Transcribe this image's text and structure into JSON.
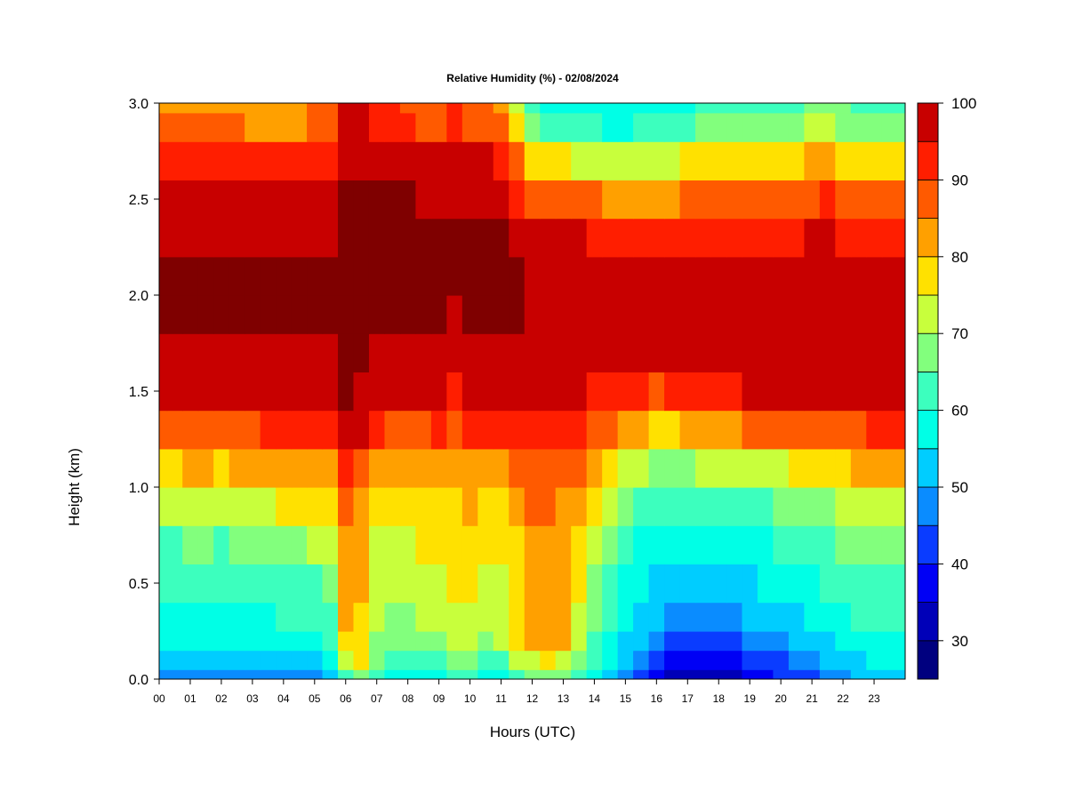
{
  "chart_data": {
    "type": "heatmap",
    "title": "Relative Humidity (%) - 02/08/2024",
    "xlabel": "Hours (UTC)",
    "ylabel": "Height (km)",
    "x_ticks": [
      "00",
      "01",
      "02",
      "03",
      "04",
      "05",
      "06",
      "07",
      "08",
      "09",
      "10",
      "11",
      "12",
      "13",
      "14",
      "15",
      "16",
      "17",
      "18",
      "19",
      "20",
      "21",
      "22",
      "23"
    ],
    "y_ticks": [
      "0.0",
      "0.5",
      "1.0",
      "1.5",
      "2.0",
      "2.5",
      "3.0"
    ],
    "xlim": [
      0,
      24
    ],
    "ylim": [
      0,
      3.0
    ],
    "x": [
      0,
      0.5,
      1,
      1.5,
      2,
      2.5,
      3,
      3.5,
      4,
      4.5,
      5,
      5.5,
      6,
      6.5,
      7,
      7.5,
      8,
      8.5,
      9,
      9.5,
      10,
      10.5,
      11,
      11.5,
      12,
      12.5,
      13,
      13.5,
      14,
      14.5,
      15,
      15.5,
      16,
      16.5,
      17,
      17.5,
      18,
      18.5,
      19,
      19.5,
      20,
      20.5,
      21,
      21.5,
      22,
      22.5,
      23,
      23.5
    ],
    "y": [
      0.0,
      0.1,
      0.2,
      0.3,
      0.5,
      0.7,
      0.9,
      1.1,
      1.3,
      1.5,
      1.7,
      1.9,
      2.1,
      2.3,
      2.5,
      2.7,
      2.9,
      3.0
    ],
    "z": [
      [
        45,
        46,
        47,
        46,
        46,
        45,
        46,
        46,
        46,
        47,
        47,
        50,
        62,
        68,
        60,
        58,
        57,
        58,
        58,
        62,
        60,
        58,
        58,
        63,
        66,
        68,
        66,
        60,
        55,
        50,
        46,
        42,
        38,
        34,
        32,
        33,
        34,
        34,
        36,
        38,
        40,
        42,
        44,
        46,
        48,
        50,
        52,
        52
      ],
      [
        52,
        52,
        53,
        52,
        52,
        52,
        52,
        53,
        53,
        54,
        54,
        57,
        70,
        75,
        66,
        64,
        63,
        64,
        64,
        68,
        66,
        64,
        64,
        70,
        74,
        76,
        74,
        66,
        60,
        55,
        50,
        46,
        42,
        38,
        36,
        37,
        38,
        38,
        40,
        42,
        44,
        46,
        48,
        50,
        52,
        54,
        56,
        56
      ],
      [
        55,
        55,
        56,
        55,
        55,
        55,
        56,
        56,
        57,
        58,
        58,
        61,
        76,
        78,
        68,
        67,
        66,
        67,
        68,
        72,
        70,
        68,
        70,
        75,
        80,
        82,
        80,
        72,
        64,
        58,
        54,
        50,
        46,
        42,
        41,
        42,
        43,
        43,
        45,
        46,
        48,
        50,
        52,
        54,
        56,
        58,
        59,
        59
      ],
      [
        57,
        57,
        58,
        58,
        57,
        58,
        58,
        59,
        60,
        61,
        61,
        64,
        80,
        79,
        70,
        69,
        68,
        70,
        71,
        74,
        73,
        72,
        72,
        77,
        82,
        84,
        82,
        74,
        66,
        61,
        57,
        54,
        51,
        48,
        47,
        48,
        49,
        49,
        50,
        51,
        52,
        54,
        56,
        58,
        59,
        61,
        62,
        62
      ],
      [
        60,
        60,
        61,
        61,
        60,
        61,
        61,
        62,
        63,
        64,
        64,
        67,
        82,
        80,
        72,
        71,
        70,
        72,
        73,
        75,
        75,
        74,
        73,
        77,
        82,
        83,
        81,
        75,
        68,
        63,
        59,
        56,
        54,
        52,
        51,
        52,
        53,
        53,
        54,
        55,
        56,
        57,
        58,
        60,
        61,
        63,
        64,
        64
      ],
      [
        64,
        64,
        65,
        65,
        64,
        65,
        66,
        67,
        68,
        69,
        70,
        72,
        84,
        82,
        74,
        73,
        73,
        75,
        76,
        77,
        77,
        76,
        75,
        79,
        83,
        84,
        82,
        77,
        71,
        66,
        62,
        59,
        57,
        55,
        55,
        56,
        57,
        57,
        58,
        59,
        60,
        61,
        62,
        64,
        65,
        67,
        68,
        68
      ],
      [
        71,
        71,
        72,
        72,
        71,
        72,
        73,
        74,
        75,
        76,
        77,
        78,
        86,
        84,
        77,
        76,
        76,
        78,
        79,
        79,
        80,
        79,
        78,
        81,
        85,
        85,
        84,
        80,
        75,
        70,
        66,
        63,
        61,
        60,
        60,
        61,
        62,
        62,
        63,
        64,
        65,
        66,
        67,
        69,
        70,
        72,
        73,
        73
      ],
      [
        79,
        79,
        80,
        80,
        79,
        80,
        81,
        82,
        83,
        83,
        84,
        84,
        90,
        88,
        82,
        80,
        80,
        82,
        83,
        82,
        84,
        84,
        83,
        86,
        88,
        88,
        87,
        85,
        81,
        77,
        73,
        70,
        68,
        68,
        68,
        70,
        71,
        71,
        72,
        73,
        74,
        75,
        76,
        78,
        79,
        80,
        81,
        81
      ],
      [
        88,
        88,
        89,
        89,
        88,
        89,
        89,
        90,
        90,
        90,
        91,
        91,
        96,
        95,
        90,
        88,
        88,
        89,
        90,
        88,
        91,
        91,
        91,
        92,
        93,
        93,
        92,
        91,
        89,
        86,
        83,
        80,
        78,
        79,
        80,
        82,
        83,
        84,
        85,
        86,
        86,
        87,
        87,
        88,
        89,
        89,
        90,
        90
      ],
      [
        96,
        96,
        96,
        96,
        95,
        96,
        96,
        96,
        96,
        96,
        96,
        96,
        100,
        99,
        96,
        95,
        95,
        95,
        96,
        94,
        96,
        96,
        96,
        97,
        96,
        96,
        96,
        95,
        94,
        93,
        92,
        90,
        89,
        90,
        91,
        92,
        93,
        94,
        95,
        96,
        95,
        95,
        95,
        95,
        95,
        95,
        95,
        95
      ],
      [
        99,
        99,
        99,
        99,
        99,
        99,
        99,
        99,
        99,
        99,
        99,
        99,
        100,
        100,
        99,
        99,
        99,
        99,
        99,
        98,
        99,
        99,
        99,
        99,
        98,
        98,
        98,
        98,
        97,
        97,
        96,
        96,
        95,
        96,
        96,
        97,
        97,
        98,
        98,
        99,
        98,
        98,
        98,
        98,
        98,
        98,
        98,
        98
      ],
      [
        100,
        100,
        100,
        100,
        100,
        100,
        100,
        100,
        100,
        100,
        100,
        100,
        100,
        100,
        100,
        100,
        100,
        100,
        100,
        99,
        100,
        100,
        100,
        100,
        99,
        99,
        99,
        99,
        99,
        98,
        98,
        98,
        97,
        98,
        98,
        98,
        98,
        99,
        99,
        99,
        99,
        99,
        99,
        99,
        99,
        99,
        99,
        99
      ],
      [
        100,
        100,
        100,
        100,
        100,
        100,
        100,
        100,
        100,
        100,
        100,
        100,
        100,
        100,
        100,
        100,
        100,
        100,
        100,
        100,
        100,
        100,
        100,
        100,
        99,
        99,
        99,
        99,
        98,
        98,
        97,
        97,
        96,
        97,
        97,
        97,
        97,
        98,
        98,
        98,
        98,
        98,
        99,
        99,
        98,
        98,
        98,
        98
      ],
      [
        99,
        99,
        99,
        99,
        99,
        99,
        99,
        99,
        99,
        99,
        99,
        99,
        100,
        100,
        100,
        100,
        100,
        100,
        100,
        100,
        100,
        100,
        100,
        99,
        96,
        96,
        96,
        95,
        94,
        93,
        92,
        92,
        91,
        92,
        93,
        93,
        93,
        94,
        94,
        94,
        93,
        94,
        95,
        96,
        94,
        93,
        93,
        93
      ],
      [
        96,
        96,
        96,
        96,
        96,
        96,
        96,
        96,
        96,
        96,
        97,
        97,
        100,
        100,
        100,
        100,
        100,
        99,
        99,
        99,
        99,
        99,
        98,
        94,
        88,
        88,
        87,
        86,
        85,
        84,
        83,
        83,
        83,
        84,
        85,
        86,
        86,
        87,
        87,
        87,
        86,
        87,
        89,
        90,
        87,
        86,
        86,
        86
      ],
      [
        91,
        91,
        91,
        91,
        91,
        91,
        91,
        91,
        90,
        91,
        93,
        94,
        99,
        99,
        98,
        98,
        97,
        95,
        95,
        96,
        95,
        95,
        93,
        86,
        78,
        76,
        75,
        74,
        73,
        72,
        72,
        72,
        73,
        74,
        75,
        77,
        77,
        78,
        79,
        79,
        78,
        79,
        82,
        83,
        79,
        77,
        77,
        77
      ],
      [
        85,
        85,
        85,
        85,
        85,
        85,
        84,
        84,
        83,
        84,
        88,
        89,
        96,
        96,
        94,
        93,
        91,
        89,
        88,
        92,
        89,
        89,
        86,
        76,
        66,
        63,
        62,
        61,
        60,
        59,
        59,
        60,
        61,
        62,
        63,
        65,
        66,
        67,
        68,
        68,
        67,
        68,
        71,
        73,
        69,
        67,
        67,
        67
      ],
      [
        83,
        83,
        83,
        83,
        83,
        83,
        82,
        82,
        81,
        82,
        86,
        87,
        95,
        95,
        93,
        92,
        89,
        87,
        86,
        90,
        87,
        87,
        84,
        73,
        62,
        59,
        58,
        57,
        56,
        55,
        55,
        56,
        57,
        58,
        59,
        61,
        62,
        63,
        64,
        64,
        63,
        64,
        67,
        69,
        65,
        63,
        63,
        63
      ]
    ],
    "colorbar": {
      "label_ticks": [
        "30",
        "40",
        "50",
        "60",
        "70",
        "80",
        "90",
        "100"
      ],
      "levels": [
        25,
        30,
        35,
        40,
        45,
        50,
        55,
        60,
        65,
        70,
        75,
        80,
        85,
        90,
        95,
        100
      ],
      "colors": [
        "#00007f",
        "#0000b8",
        "#0000f5",
        "#0a3cff",
        "#0a8cff",
        "#00cdff",
        "#00ffe6",
        "#3cffbe",
        "#82ff7d",
        "#c8ff3c",
        "#ffe100",
        "#ffa000",
        "#ff5a00",
        "#ff1e00",
        "#c80000",
        "#7f0000"
      ]
    }
  }
}
